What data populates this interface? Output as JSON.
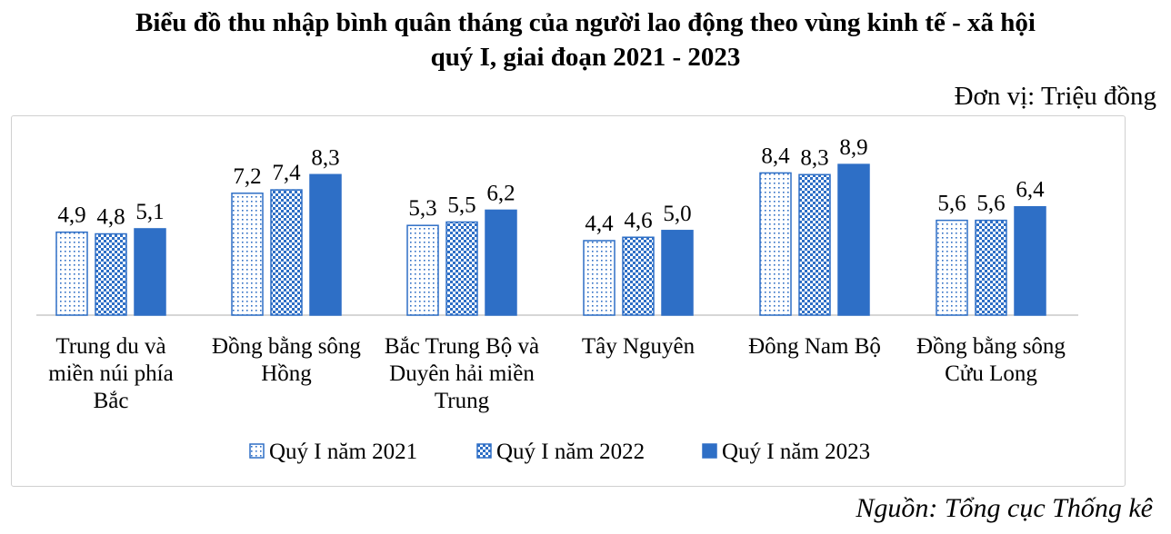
{
  "title_line1": "Biểu đồ thu nhập bình quân tháng của người lao động theo vùng kinh tế - xã hội",
  "title_line2": "quý I, giai đoạn 2021 - 2023",
  "unit": "Đơn vị: Triệu đồng",
  "source": "Nguồn: Tổng cục Thống kê",
  "colors": {
    "accent": "#2e6fc6",
    "axis": "#c8c8c8"
  },
  "chart_data": {
    "type": "bar",
    "title": "Biểu đồ thu nhập bình quân tháng của người lao động theo vùng kinh tế - xã hội quý I, giai đoạn 2021 - 2023",
    "xlabel": "",
    "ylabel": "",
    "ylim": [
      0,
      9.5
    ],
    "grid": false,
    "legend_position": "bottom",
    "categories": [
      [
        "Trung du và",
        "miền núi phía",
        "Bắc"
      ],
      [
        "Đồng bằng sông",
        "Hồng"
      ],
      [
        "Bắc Trung Bộ và",
        "Duyên hải miền",
        "Trung"
      ],
      [
        "Tây Nguyên"
      ],
      [
        "Đông Nam Bộ"
      ],
      [
        "Đồng bằng sông",
        "Cửu Long"
      ]
    ],
    "series": [
      {
        "name": "Quý I năm 2021",
        "pattern": "dots",
        "values": [
          4.9,
          7.2,
          5.3,
          4.4,
          8.4,
          5.6
        ],
        "labels": [
          "4,9",
          "7,2",
          "5,3",
          "4,4",
          "8,4",
          "5,6"
        ]
      },
      {
        "name": "Quý I năm 2022",
        "pattern": "checker",
        "values": [
          4.8,
          7.4,
          5.5,
          4.6,
          8.3,
          5.6
        ],
        "labels": [
          "4,8",
          "7,4",
          "5,5",
          "4,6",
          "8,3",
          "5,6"
        ]
      },
      {
        "name": "Quý I năm 2023",
        "pattern": "solid",
        "values": [
          5.1,
          8.3,
          6.2,
          5.0,
          8.9,
          6.4
        ],
        "labels": [
          "5,1",
          "8,3",
          "6,2",
          "5,0",
          "8,9",
          "6,4"
        ]
      }
    ]
  }
}
